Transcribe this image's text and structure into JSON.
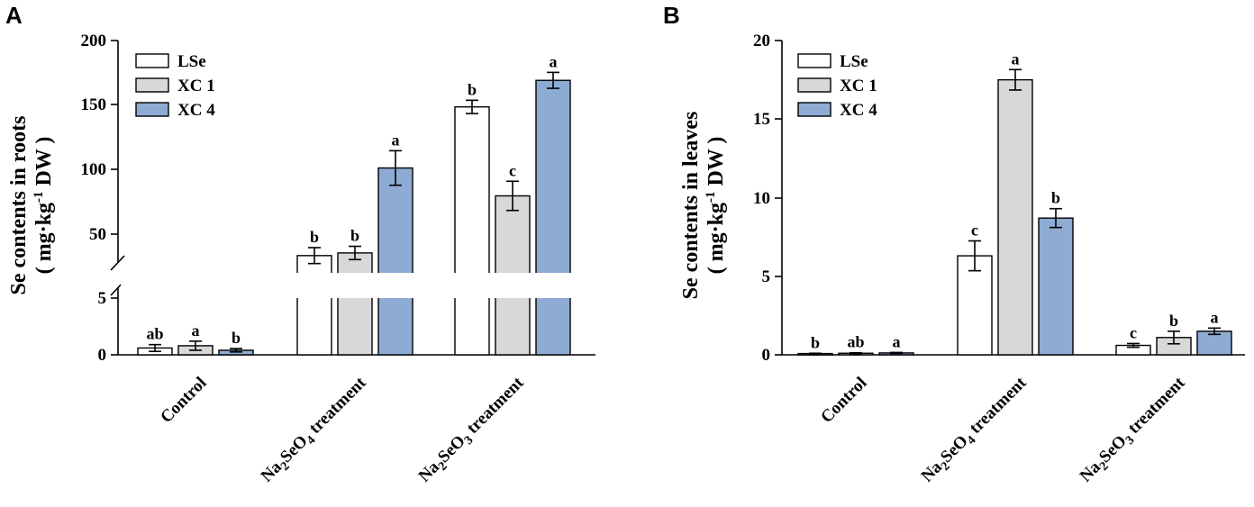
{
  "figure": {
    "panels": [
      {
        "letter": "A",
        "ylabel_line1": "Se contents in roots",
        "ylabel_line2": "( mg·kg",
        "ylabel_sup": "-1",
        "ylabel_tail": " DW )"
      },
      {
        "letter": "B",
        "ylabel_line1": "Se contents in leaves",
        "ylabel_line2": "( mg·kg",
        "ylabel_sup": "-1",
        "ylabel_tail": " DW )"
      }
    ],
    "legend": [
      "LSe",
      "XC 1",
      "XC 4"
    ],
    "group_labels": [
      {
        "main": "Control"
      },
      {
        "pre": "Na",
        "sub1": "2",
        "mid": "SeO",
        "sub2": "4",
        "post": " treatment"
      },
      {
        "pre": "Na",
        "sub1": "2",
        "mid": "SeO",
        "sub2": "3",
        "post": " treatment"
      }
    ]
  },
  "colors": {
    "LSe": "#ffffff",
    "XC 1": "#d8d8d8",
    "XC 4": "#8eabd4"
  },
  "chart_data": [
    {
      "type": "bar",
      "panel": "A",
      "title": "",
      "xlabel": "",
      "ylabel": "Se contents in roots ( mg·kg-1 DW )",
      "categories": [
        "Control",
        "Na2SeO4 treatment",
        "Na2SeO3 treatment"
      ],
      "y_axis_break": {
        "lower_range": [
          0,
          5
        ],
        "upper_range": [
          25,
          200
        ]
      },
      "yticks": [
        "0",
        "5",
        "50",
        "100",
        "150",
        "200"
      ],
      "series": [
        {
          "name": "LSe",
          "values": [
            0.6,
            38,
            150
          ],
          "errors": [
            0.3,
            6,
            5
          ],
          "letters": [
            "ab",
            "b",
            "b"
          ]
        },
        {
          "name": "XC 1",
          "values": [
            0.8,
            40,
            83
          ],
          "errors": [
            0.4,
            5,
            11
          ],
          "letters": [
            "a",
            "b",
            "c"
          ]
        },
        {
          "name": "XC 4",
          "values": [
            0.4,
            104,
            170
          ],
          "errors": [
            0.15,
            13,
            6
          ],
          "letters": [
            "b",
            "a",
            "a"
          ]
        }
      ]
    },
    {
      "type": "bar",
      "panel": "B",
      "title": "",
      "xlabel": "",
      "ylabel": "Se contents in leaves ( mg·kg-1 DW )",
      "categories": [
        "Control",
        "Na2SeO4 treatment",
        "Na2SeO3 treatment"
      ],
      "ylim": [
        0,
        20
      ],
      "yticks": [
        "0",
        "5",
        "10",
        "15",
        "20"
      ],
      "series": [
        {
          "name": "LSe",
          "values": [
            0.08,
            6.3,
            0.6
          ],
          "errors": [
            0.02,
            0.95,
            0.12
          ],
          "letters": [
            "b",
            "c",
            "c"
          ]
        },
        {
          "name": "XC 1",
          "values": [
            0.1,
            17.5,
            1.1
          ],
          "errors": [
            0.03,
            0.65,
            0.4
          ],
          "letters": [
            "ab",
            "a",
            "b"
          ]
        },
        {
          "name": "XC 4",
          "values": [
            0.12,
            8.7,
            1.5
          ],
          "errors": [
            0.03,
            0.6,
            0.2
          ],
          "letters": [
            "a",
            "b",
            "a"
          ]
        }
      ]
    }
  ]
}
